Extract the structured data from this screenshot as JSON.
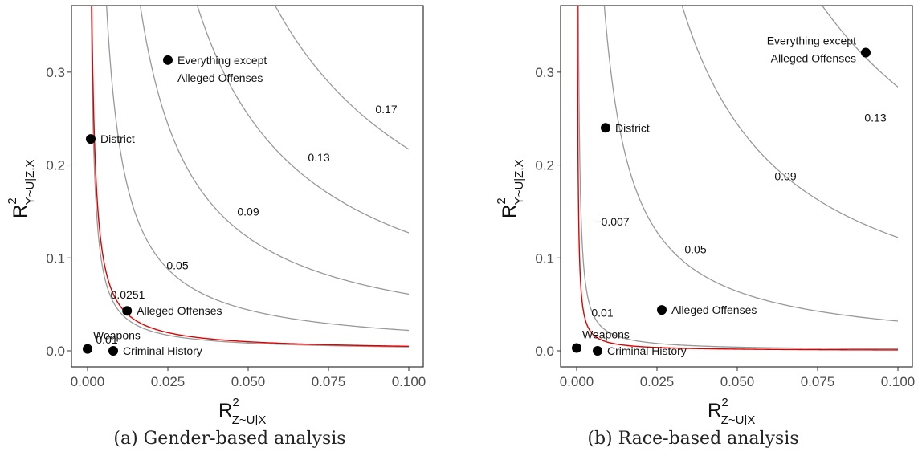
{
  "chart_data": [
    {
      "type": "contour",
      "caption": "(a) Gender-based analysis",
      "xlabel": {
        "main": "R",
        "sup": "2",
        "sub": "Z~U|X"
      },
      "ylabel": {
        "main": "R",
        "sup": "2",
        "sub": "Y~U|Z,X"
      },
      "xlim": [
        0,
        0.1
      ],
      "ylim": [
        0,
        0.35
      ],
      "xticks": [
        {
          "value": 0.0,
          "label": "0.000"
        },
        {
          "value": 0.025,
          "label": "0.025"
        },
        {
          "value": 0.05,
          "label": "0.050"
        },
        {
          "value": 0.075,
          "label": "0.075"
        },
        {
          "value": 0.1,
          "label": "0.100"
        }
      ],
      "yticks": [
        {
          "value": 0.0,
          "label": "0.0"
        },
        {
          "value": 0.1,
          "label": "0.1"
        },
        {
          "value": 0.2,
          "label": "0.2"
        },
        {
          "value": 0.3,
          "label": "0.3"
        }
      ],
      "grid": false,
      "contours": [
        {
          "label": "0.01",
          "k": 0.00042,
          "color": "#999999",
          "label_at": [
            0.006,
            0.011
          ]
        },
        {
          "label": "0.0251",
          "k": 0.00049,
          "color": "#e00000",
          "label_at": [
            0.0125,
            0.0595
          ]
        },
        {
          "label": "0.05",
          "k": 0.0022,
          "color": "#999999",
          "label_at": [
            0.028,
            0.091
          ]
        },
        {
          "label": "0.09",
          "k": 0.0061,
          "color": "#999999",
          "label_at": [
            0.05,
            0.149
          ]
        },
        {
          "label": "0.13",
          "k": 0.0127,
          "color": "#999999",
          "label_at": [
            0.072,
            0.207
          ]
        },
        {
          "label": "0.17",
          "k": 0.0217,
          "color": "#999999",
          "label_at": [
            0.093,
            0.259
          ]
        }
      ],
      "points": [
        {
          "label": "Everything except\nAlleged Offenses",
          "x": 0.025,
          "y": 0.313,
          "label_pos": "right"
        },
        {
          "label": "District",
          "x": 0.001,
          "y": 0.228,
          "label_pos": "right"
        },
        {
          "label": "Alleged Offenses",
          "x": 0.0123,
          "y": 0.043,
          "label_pos": "right"
        },
        {
          "label": "Weapons",
          "x": 0.0,
          "y": 0.002,
          "label_pos": "above-right"
        },
        {
          "label": "Criminal History",
          "x": 0.008,
          "y": 0.0,
          "label_pos": "right"
        }
      ]
    },
    {
      "type": "contour",
      "caption": "(b) Race-based analysis",
      "xlabel": {
        "main": "R",
        "sup": "2",
        "sub": "Z~U|X"
      },
      "ylabel": {
        "main": "R",
        "sup": "2",
        "sub": "Y~U|Z,X"
      },
      "xlim": [
        0,
        0.1
      ],
      "ylim": [
        0,
        0.35
      ],
      "xticks": [
        {
          "value": 0.0,
          "label": "0.000"
        },
        {
          "value": 0.025,
          "label": "0.025"
        },
        {
          "value": 0.05,
          "label": "0.050"
        },
        {
          "value": 0.075,
          "label": "0.075"
        },
        {
          "value": 0.1,
          "label": "0.100"
        }
      ],
      "yticks": [
        {
          "value": 0.0,
          "label": "0.0"
        },
        {
          "value": 0.1,
          "label": "0.1"
        },
        {
          "value": 0.2,
          "label": "0.2"
        },
        {
          "value": 0.3,
          "label": "0.3"
        }
      ],
      "grid": false,
      "contours": [
        {
          "label": "0.01",
          "k": 0.0002,
          "color": "#999999",
          "label_at": [
            0.008,
            0.04
          ]
        },
        {
          "label": "−0.007",
          "k": 9e-05,
          "color": "#e00000",
          "label_at": [
            0.011,
            0.138
          ]
        },
        {
          "label": "0.05",
          "k": 0.0032,
          "color": "#999999",
          "label_at": [
            0.037,
            0.108
          ]
        },
        {
          "label": "0.09",
          "k": 0.0122,
          "color": "#999999",
          "label_at": [
            0.065,
            0.187
          ]
        },
        {
          "label": "0.13",
          "k": 0.0284,
          "color": "#999999",
          "label_at": [
            0.093,
            0.25
          ]
        }
      ],
      "points": [
        {
          "label": "Everything except\nAlleged Offenses",
          "x": 0.09,
          "y": 0.321,
          "label_pos": "left-above"
        },
        {
          "label": "District",
          "x": 0.009,
          "y": 0.24,
          "label_pos": "right"
        },
        {
          "label": "Alleged Offenses",
          "x": 0.0265,
          "y": 0.044,
          "label_pos": "right"
        },
        {
          "label": "Weapons",
          "x": 0.0,
          "y": 0.003,
          "label_pos": "above-right"
        },
        {
          "label": "Criminal History",
          "x": 0.0065,
          "y": 0.0,
          "label_pos": "right"
        }
      ]
    }
  ]
}
